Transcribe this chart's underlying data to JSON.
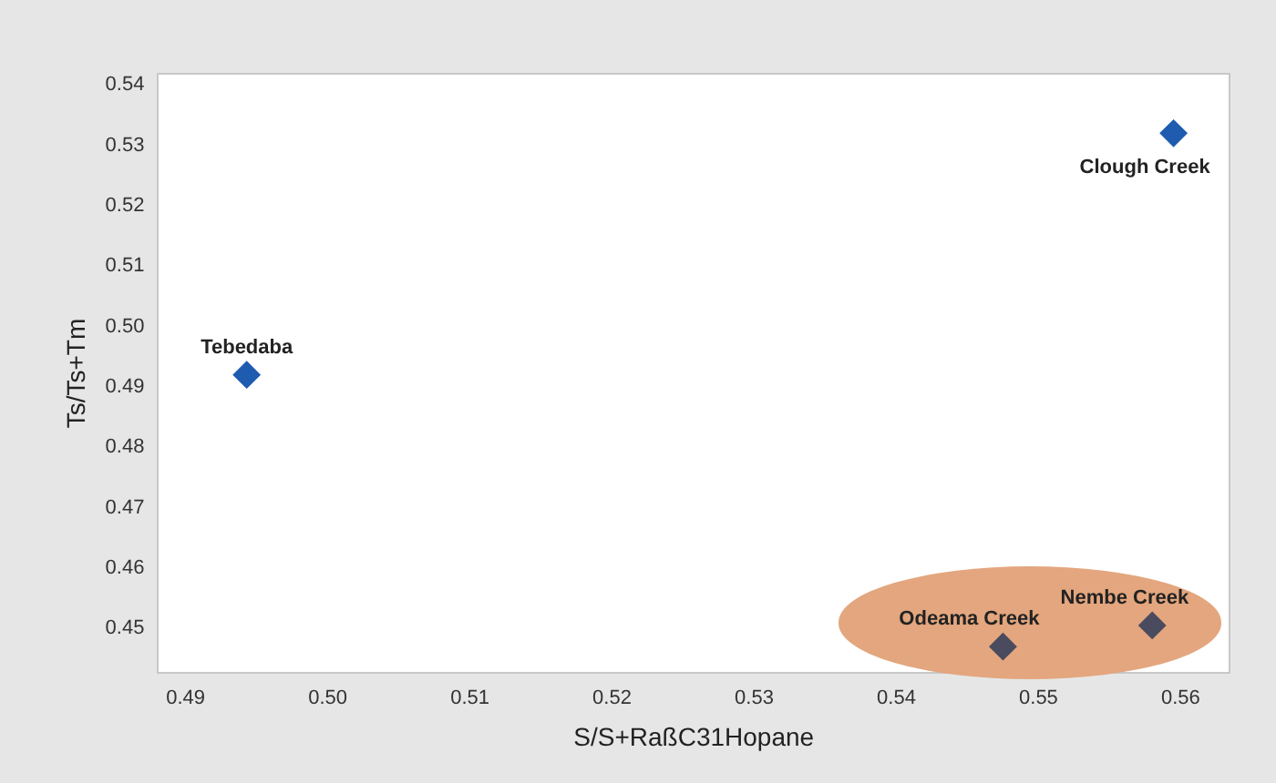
{
  "chart_data": {
    "type": "scatter",
    "xlabel": "S/S+RaßC31Hopane",
    "ylabel": "Ts/Ts+Tm",
    "series": [
      {
        "color": "#1f5cb0",
        "x": [
          0.4943,
          0.5595
        ],
        "values": [
          0.492,
          0.532
        ]
      },
      {
        "color": "#4b4b5f",
        "x": [
          0.5475,
          0.558
        ],
        "values": [
          0.447,
          0.4505
        ]
      }
    ],
    "annotations": [
      {
        "text": "Tebedaba",
        "x": 0.4943,
        "y": 0.492
      },
      {
        "text": "Clough Creek",
        "x": 0.5595,
        "y": 0.532
      },
      {
        "text": "Odeama Creek",
        "x": 0.5475,
        "y": 0.447
      },
      {
        "text": "Nembe Creek",
        "x": 0.558,
        "y": 0.4505
      }
    ],
    "xlim": [
      0.488,
      0.5635
    ],
    "ylim": [
      0.4425,
      0.542
    ],
    "xticks": [
      0.49,
      {
        "value": 0.5,
        "label": "0.50"
      },
      0.51,
      0.52,
      0.53,
      0.54,
      0.55,
      0.56
    ],
    "yticks": [
      0.45,
      0.46,
      0.47,
      0.48,
      0.49,
      {
        "value": 0.5,
        "label": "0.50"
      },
      0.51,
      0.52,
      0.53,
      0.54
    ],
    "marker": "diamond",
    "grid": false,
    "legend": false
  }
}
